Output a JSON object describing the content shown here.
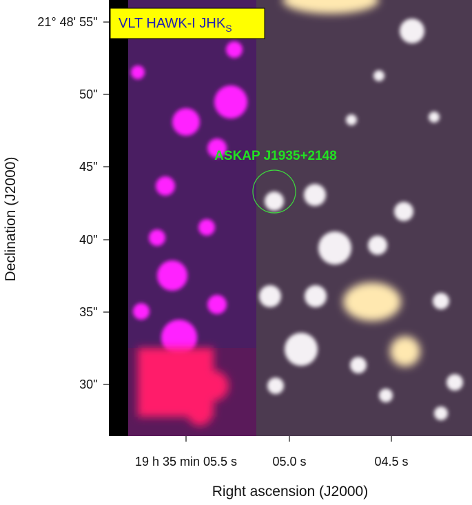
{
  "image": {
    "instrument_label": [
      "VLT HAWK-I JHK",
      "S"
    ],
    "source_label": "ASKAP J1935+2148"
  },
  "axes": {
    "y_title": "Declination (J2000)",
    "x_title": "Right ascension (J2000)",
    "y_ticks": [
      "21° 48' 55''",
      "50''",
      "45''",
      "40''",
      "35''",
      "30''"
    ],
    "x_ticks": [
      "19 h 35 min 05.5 s",
      "05.0 s",
      "04.5 s"
    ]
  }
}
